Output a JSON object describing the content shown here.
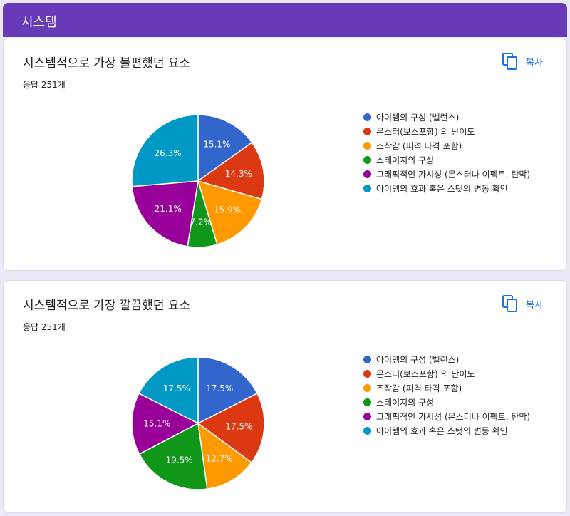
{
  "section": {
    "title": "시스템"
  },
  "copy_label": "복사",
  "colors": [
    "#3366cc",
    "#dc3912",
    "#ff9900",
    "#109618",
    "#990099",
    "#0099c6"
  ],
  "categories": [
    "아이템의 구성 (벨런스)",
    "몬스터(보스포함) 의 난이도",
    "조작감 (피격 타격 포함)",
    "스테이지의 구성",
    "그래픽적인 가시성 (몬스터나 이펙트, 탄막)",
    "아이템의 효과 혹은 스탯의 변동 확인"
  ],
  "chart_data": [
    {
      "type": "pie",
      "title": "시스템적으로 가장 불편했던 요소",
      "responses": "응답 251개",
      "values": [
        15.1,
        14.3,
        15.9,
        7.2,
        21.1,
        26.3
      ],
      "labels": [
        "15.1%",
        "14.3%",
        "15.9%",
        "7.2%",
        "21.1%",
        "26.3%"
      ],
      "legend_position": "right"
    },
    {
      "type": "pie",
      "title": "시스템적으로 가장 깔끔했던 요소",
      "responses": "응답 251개",
      "values": [
        17.5,
        17.5,
        12.7,
        19.5,
        15.1,
        17.5
      ],
      "labels": [
        "17.5%",
        "17.5%",
        "12.7%",
        "19.5%",
        "15.1%",
        "17.5%"
      ],
      "legend_position": "right"
    }
  ]
}
